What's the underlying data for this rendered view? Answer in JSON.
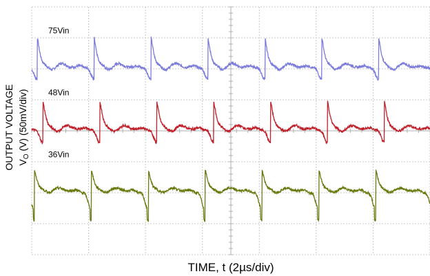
{
  "chart_data": {
    "type": "line",
    "xlabel": "TIME, t (2µs/div)",
    "ylabel_line1": "OUTPUT VOLTAGE",
    "ylabel_line2_prefix": "V",
    "ylabel_line2_sub": "O",
    "ylabel_line2_suffix": " (V) (50mV/div)",
    "x_divisions": 7,
    "y_divisions": 8,
    "grid": true,
    "grid_style": "dotted oscilloscope graticule",
    "x_range_us": [
      0,
      14
    ],
    "voltage_per_div_mV": 50,
    "switching_period_us": 2.0,
    "series": [
      {
        "name": "75Vin",
        "color": "#7b7bdc",
        "baseline_div": 1.0,
        "peak_mV": 45,
        "trough_mV": -27,
        "peak_times_us": [
          0.2,
          2.2,
          4.2,
          6.2,
          8.2,
          10.2,
          12.2
        ]
      },
      {
        "name": "48Vin",
        "color": "#c0202a",
        "baseline_div": 3.0,
        "peak_mV": 42,
        "trough_mV": -30,
        "peak_times_us": [
          0.4,
          2.4,
          4.4,
          6.4,
          8.4,
          10.4,
          12.4
        ]
      },
      {
        "name": "36Vin",
        "color": "#6b7a10",
        "baseline_div": 5.0,
        "peak_mV": 32,
        "trough_mV": -40,
        "peak_times_us": [
          0.1,
          2.1,
          4.1,
          6.1,
          8.1,
          10.1,
          12.1
        ]
      }
    ]
  }
}
